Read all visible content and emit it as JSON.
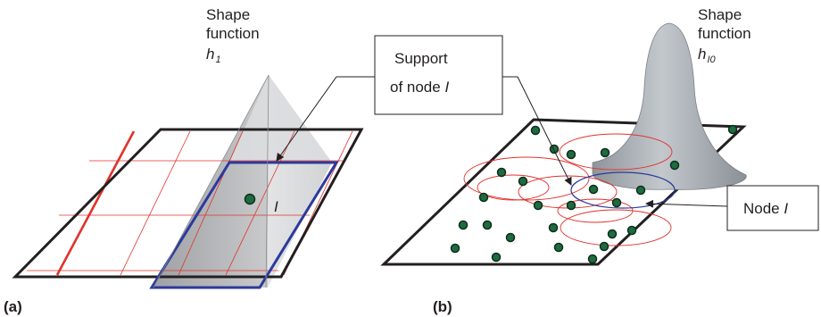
{
  "panel_a": {
    "label": "(a)",
    "shape_function_line1": "Shape",
    "shape_function_line2": "function",
    "shape_symbol": "h",
    "shape_subscript": "1",
    "node_label": "I"
  },
  "panel_b": {
    "label": "(b)",
    "shape_function_line1": "Shape",
    "shape_function_line2": "function",
    "shape_symbol": "h",
    "shape_subscript": "I0"
  },
  "callout_support": {
    "line1": "Support",
    "line2_prefix": "of node ",
    "line2_italic": "I"
  },
  "callout_node": {
    "prefix": "Node ",
    "italic": "I"
  },
  "colors": {
    "grid_red": "#e0322b",
    "support_blue": "#2b3a9c",
    "node_green": "#1f6b40",
    "outline": "#231f20",
    "pyramid_gray": "#bfc0c2",
    "bump_gray": "#a7acb2"
  },
  "icons": [
    "arrow-icon",
    "node-dot-icon"
  ]
}
